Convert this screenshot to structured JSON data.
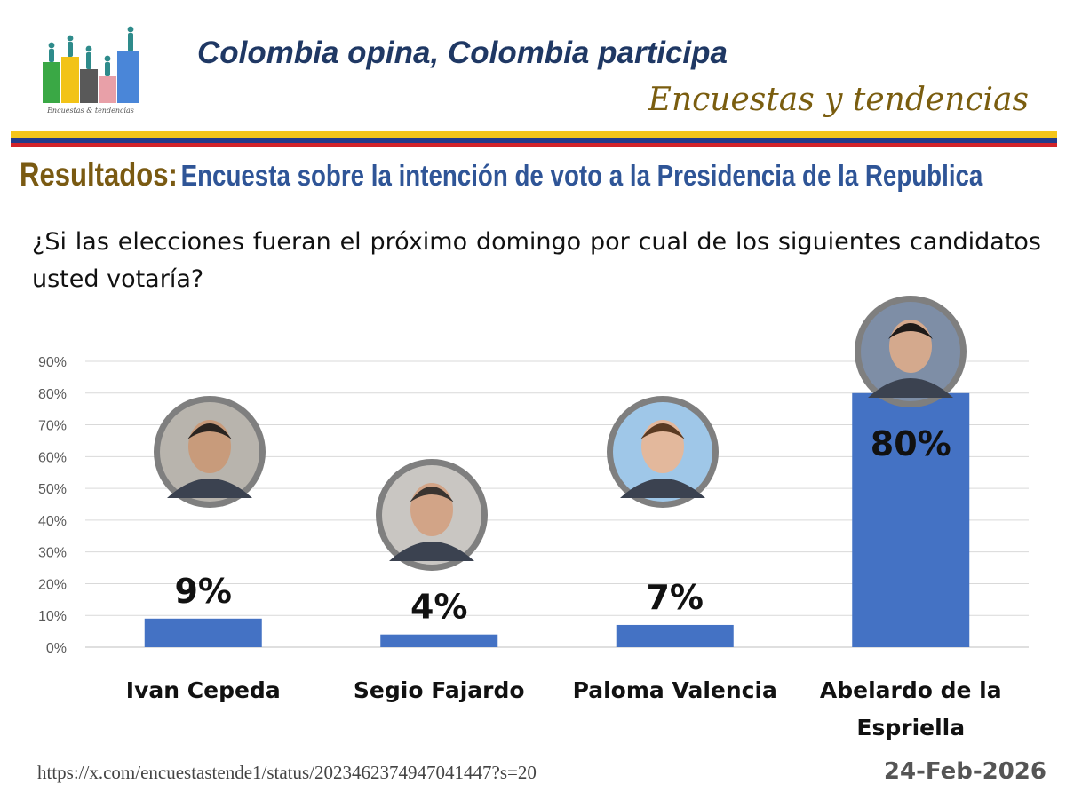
{
  "header": {
    "title": "Colombia opina, Colombia participa",
    "subtitle": "Encuestas y tendencias",
    "logo_caption": "Encuestas & tendencias"
  },
  "results": {
    "prefix": "Resultados:",
    "text": "Encuesta sobre la intención de voto a la  Presidencia de la Republica"
  },
  "question": "¿Si las elecciones fueran el próximo domingo por cual de los siguientes candidatos usted votaría?",
  "colors": {
    "bar": "#4472c4",
    "photo_ring": "#7f7f7f",
    "flag_yellow": "#f4c51a",
    "flag_blue": "#233a8a",
    "flag_red": "#d2232a"
  },
  "chart_data": {
    "type": "bar",
    "title": "",
    "xlabel": "",
    "ylabel": "",
    "categories": [
      "Ivan Cepeda",
      "Segio Fajardo",
      "Paloma Valencia",
      "Abelardo de la Espriella"
    ],
    "values": [
      9,
      4,
      7,
      80
    ],
    "data_labels": [
      "9%",
      "4%",
      "7%",
      "80%"
    ],
    "y_ticks": [
      "0%",
      "10%",
      "20%",
      "30%",
      "40%",
      "50%",
      "60%",
      "70%",
      "80%",
      "90%"
    ],
    "ylim": [
      0,
      90
    ],
    "grid": true,
    "legend": "none"
  },
  "footer": {
    "source_url": "https://x.com/encuestastende1/status/2023462374947041447?s=20",
    "date": "24-Feb-2026"
  }
}
